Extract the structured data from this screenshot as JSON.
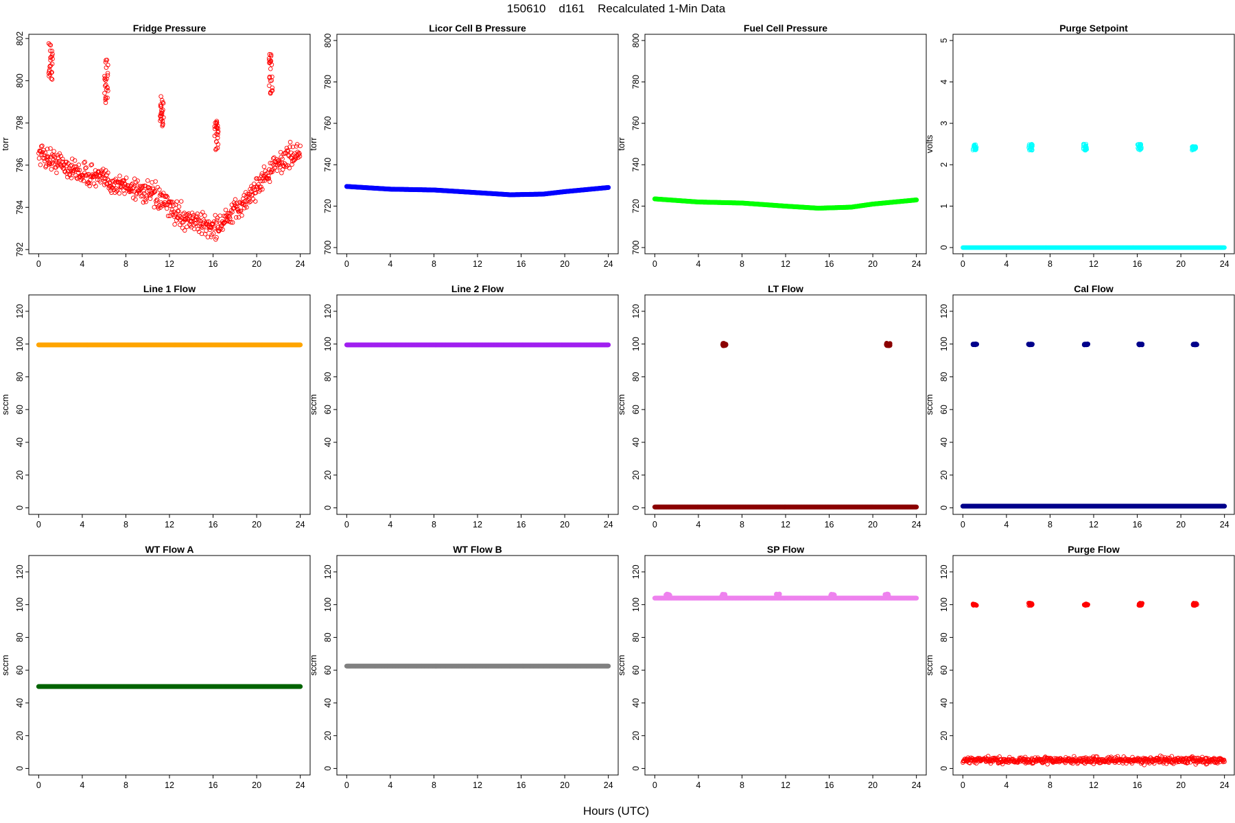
{
  "figure": {
    "title": "150610    d161    Recalculated 1-Min Data",
    "xlabel": "Hours (UTC)"
  },
  "chart_data": [
    {
      "type": "scatter",
      "title": "Fridge Pressure",
      "ylabel": "torr",
      "color": "#ff0000",
      "marker": "open-circle",
      "xlim": [
        0,
        24
      ],
      "ylim": [
        791.8,
        802.2
      ],
      "xticks": [
        0,
        4,
        8,
        12,
        16,
        20,
        24
      ],
      "yticks": [
        792,
        794,
        796,
        798,
        800,
        802
      ],
      "series": [
        {
          "kind": "cloud",
          "x": [
            0,
            1,
            2,
            3,
            4,
            5,
            6,
            7,
            8,
            9,
            10,
            11,
            12,
            13,
            14,
            15,
            16,
            17,
            18,
            19,
            20,
            21,
            22,
            23,
            24
          ],
          "y": [
            796.6,
            796.3,
            796.1,
            795.8,
            795.6,
            795.5,
            795.3,
            795.1,
            795.0,
            794.9,
            794.7,
            794.4,
            794.0,
            793.6,
            793.4,
            793.2,
            793.0,
            793.3,
            793.8,
            794.3,
            795.0,
            795.6,
            796.1,
            796.4,
            796.6
          ],
          "spread": 0.6,
          "bursts": [
            {
              "x": 1.1,
              "ymin": 799.9,
              "ymax": 801.8
            },
            {
              "x": 6.2,
              "ymin": 798.9,
              "ymax": 801.0
            },
            {
              "x": 11.3,
              "ymin": 797.8,
              "ymax": 799.3
            },
            {
              "x": 16.3,
              "ymin": 796.6,
              "ymax": 798.3
            },
            {
              "x": 21.3,
              "ymin": 799.3,
              "ymax": 801.3
            }
          ]
        }
      ]
    },
    {
      "type": "scatter",
      "title": "Licor Cell B Pressure",
      "ylabel": "torr",
      "color": "#0000ff",
      "marker": "filled-circle",
      "xlim": [
        0,
        24
      ],
      "ylim": [
        697,
        803
      ],
      "xticks": [
        0,
        4,
        8,
        12,
        16,
        20,
        24
      ],
      "yticks": [
        700,
        720,
        740,
        760,
        780,
        800
      ],
      "series": [
        {
          "kind": "band",
          "x": [
            0,
            4,
            8,
            12,
            15,
            18,
            20,
            24
          ],
          "y": [
            729.5,
            728.2,
            727.8,
            726.5,
            725.5,
            725.8,
            727.0,
            729.0
          ]
        }
      ]
    },
    {
      "type": "scatter",
      "title": "Fuel Cell Pressure",
      "ylabel": "torr",
      "color": "#00ff00",
      "marker": "filled-circle",
      "xlim": [
        0,
        24
      ],
      "ylim": [
        697,
        803
      ],
      "xticks": [
        0,
        4,
        8,
        12,
        16,
        20,
        24
      ],
      "yticks": [
        700,
        720,
        740,
        760,
        780,
        800
      ],
      "series": [
        {
          "kind": "band",
          "x": [
            0,
            4,
            8,
            12,
            15,
            18,
            20,
            24
          ],
          "y": [
            723.5,
            722.0,
            721.5,
            720.0,
            719.0,
            719.5,
            721.0,
            723.0
          ]
        }
      ]
    },
    {
      "type": "scatter",
      "title": "Purge Setpoint",
      "ylabel": "volts",
      "color": "#00ffff",
      "marker": "open-circle",
      "xlim": [
        0,
        24
      ],
      "ylim": [
        -0.15,
        5.15
      ],
      "xticks": [
        0,
        4,
        8,
        12,
        16,
        20,
        24
      ],
      "yticks": [
        0,
        1,
        2,
        3,
        4,
        5
      ],
      "series": [
        {
          "kind": "band",
          "x": [
            0,
            24
          ],
          "y": [
            0,
            0
          ],
          "bursts": [
            {
              "x": 1.1,
              "ymin": 2.35,
              "ymax": 2.5
            },
            {
              "x": 6.2,
              "ymin": 2.35,
              "ymax": 2.5
            },
            {
              "x": 11.2,
              "ymin": 2.35,
              "ymax": 2.5
            },
            {
              "x": 16.2,
              "ymin": 2.35,
              "ymax": 2.5
            },
            {
              "x": 21.2,
              "ymin": 2.35,
              "ymax": 2.45
            }
          ]
        }
      ]
    },
    {
      "type": "scatter",
      "title": "Line 1 Flow",
      "ylabel": "sccm",
      "color": "#ffa500",
      "marker": "filled-circle",
      "xlim": [
        0,
        24
      ],
      "ylim": [
        -4,
        130
      ],
      "xticks": [
        0,
        4,
        8,
        12,
        16,
        20,
        24
      ],
      "yticks": [
        0,
        20,
        40,
        60,
        80,
        100,
        120
      ],
      "series": [
        {
          "kind": "band",
          "x": [
            0,
            24
          ],
          "y": [
            99.5,
            99.5
          ]
        }
      ]
    },
    {
      "type": "scatter",
      "title": "Line 2 Flow",
      "ylabel": "sccm",
      "color": "#a020f0",
      "marker": "filled-circle",
      "xlim": [
        0,
        24
      ],
      "ylim": [
        -4,
        130
      ],
      "xticks": [
        0,
        4,
        8,
        12,
        16,
        20,
        24
      ],
      "yticks": [
        0,
        20,
        40,
        60,
        80,
        100,
        120
      ],
      "series": [
        {
          "kind": "band",
          "x": [
            0,
            24
          ],
          "y": [
            99.5,
            99.5
          ]
        }
      ]
    },
    {
      "type": "scatter",
      "title": "LT Flow",
      "ylabel": "sccm",
      "color": "#8b0000",
      "marker": "filled-circle",
      "xlim": [
        0,
        24
      ],
      "ylim": [
        -4,
        130
      ],
      "xticks": [
        0,
        4,
        8,
        12,
        16,
        20,
        24
      ],
      "yticks": [
        0,
        20,
        40,
        60,
        80,
        100,
        120
      ],
      "series": [
        {
          "kind": "band",
          "x": [
            0,
            24
          ],
          "y": [
            0.5,
            0.5
          ],
          "bursts": [
            {
              "x": 6.4,
              "ymin": 99,
              "ymax": 100.5
            },
            {
              "x": 21.4,
              "ymin": 99,
              "ymax": 100.5
            }
          ]
        }
      ]
    },
    {
      "type": "scatter",
      "title": "Cal Flow",
      "ylabel": "sccm",
      "color": "#00008b",
      "marker": "filled-circle",
      "xlim": [
        0,
        24
      ],
      "ylim": [
        -4,
        130
      ],
      "xticks": [
        0,
        4,
        8,
        12,
        16,
        20,
        24
      ],
      "yticks": [
        0,
        20,
        40,
        60,
        80,
        100,
        120
      ],
      "series": [
        {
          "kind": "band",
          "x": [
            0,
            24
          ],
          "y": [
            1,
            1
          ],
          "bursts": [
            {
              "x": 1.1,
              "ymin": 99.5,
              "ymax": 100
            },
            {
              "x": 6.2,
              "ymin": 99.5,
              "ymax": 100
            },
            {
              "x": 11.3,
              "ymin": 99.5,
              "ymax": 100
            },
            {
              "x": 16.3,
              "ymin": 99.5,
              "ymax": 100
            },
            {
              "x": 21.3,
              "ymin": 99.5,
              "ymax": 100
            }
          ]
        }
      ]
    },
    {
      "type": "scatter",
      "title": "WT Flow A",
      "ylabel": "sccm",
      "color": "#006400",
      "marker": "filled-circle",
      "xlim": [
        0,
        24
      ],
      "ylim": [
        -4,
        130
      ],
      "xticks": [
        0,
        4,
        8,
        12,
        16,
        20,
        24
      ],
      "yticks": [
        0,
        20,
        40,
        60,
        80,
        100,
        120
      ],
      "series": [
        {
          "kind": "band",
          "x": [
            0,
            24
          ],
          "y": [
            50,
            50
          ]
        }
      ]
    },
    {
      "type": "scatter",
      "title": "WT Flow B",
      "ylabel": "sccm",
      "color": "#808080",
      "marker": "filled-circle",
      "xlim": [
        0,
        24
      ],
      "ylim": [
        -4,
        130
      ],
      "xticks": [
        0,
        4,
        8,
        12,
        16,
        20,
        24
      ],
      "yticks": [
        0,
        20,
        40,
        60,
        80,
        100,
        120
      ],
      "series": [
        {
          "kind": "band",
          "x": [
            0,
            24
          ],
          "y": [
            62.5,
            62.5
          ]
        }
      ]
    },
    {
      "type": "scatter",
      "title": "SP Flow",
      "ylabel": "sccm",
      "color": "#ee82ee",
      "marker": "filled-circle",
      "xlim": [
        0,
        24
      ],
      "ylim": [
        -4,
        130
      ],
      "xticks": [
        0,
        4,
        8,
        12,
        16,
        20,
        24
      ],
      "yticks": [
        0,
        20,
        40,
        60,
        80,
        100,
        120
      ],
      "series": [
        {
          "kind": "band",
          "x": [
            0,
            24
          ],
          "y": [
            104,
            104
          ],
          "bursts": [
            {
              "x": 1.2,
              "ymin": 104,
              "ymax": 106.5
            },
            {
              "x": 6.3,
              "ymin": 104,
              "ymax": 106.5
            },
            {
              "x": 11.3,
              "ymin": 104,
              "ymax": 106.5
            },
            {
              "x": 16.3,
              "ymin": 104,
              "ymax": 106.5
            },
            {
              "x": 21.3,
              "ymin": 104,
              "ymax": 106.5
            }
          ]
        }
      ]
    },
    {
      "type": "scatter",
      "title": "Purge Flow",
      "ylabel": "sccm",
      "color": "#ff0000",
      "marker": "open-circle",
      "xlim": [
        0,
        24
      ],
      "ylim": [
        -4,
        130
      ],
      "xticks": [
        0,
        4,
        8,
        12,
        16,
        20,
        24
      ],
      "yticks": [
        0,
        20,
        40,
        60,
        80,
        100,
        120
      ],
      "series": [
        {
          "kind": "cloud",
          "x": [
            0,
            24
          ],
          "y": [
            5,
            5
          ],
          "spread": 2.2,
          "bursts": [
            {
              "x": 1.1,
              "ymin": 99.5,
              "ymax": 100.5
            },
            {
              "x": 6.2,
              "ymin": 99.5,
              "ymax": 101
            },
            {
              "x": 11.3,
              "ymin": 99.5,
              "ymax": 100.5
            },
            {
              "x": 16.3,
              "ymin": 99.5,
              "ymax": 101
            },
            {
              "x": 21.3,
              "ymin": 99.5,
              "ymax": 101
            }
          ]
        }
      ]
    }
  ]
}
